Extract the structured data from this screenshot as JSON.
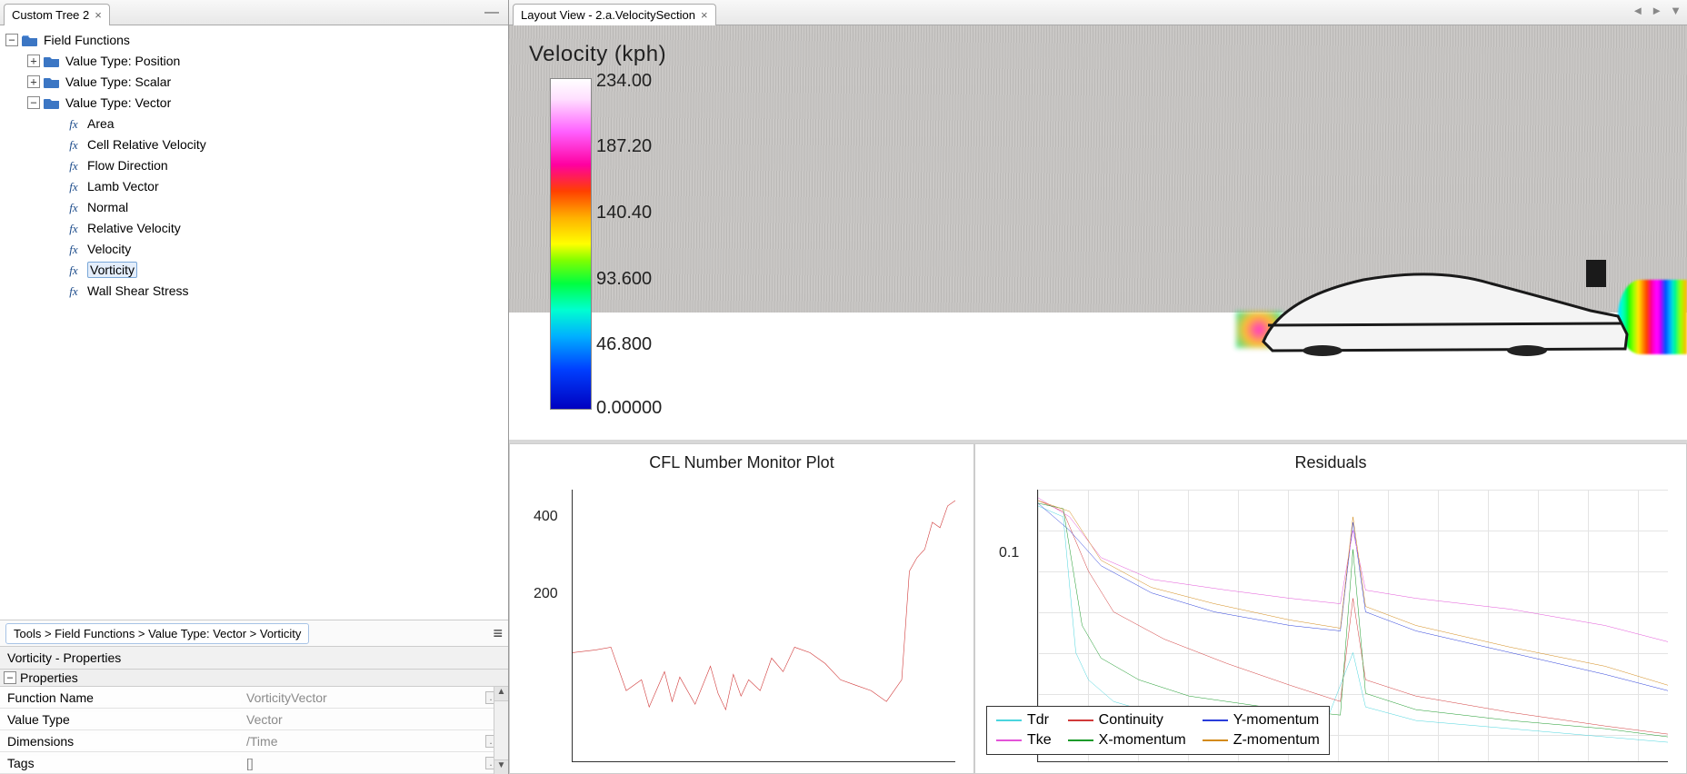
{
  "leftTab": {
    "title": "Custom Tree 2"
  },
  "rightTab": {
    "title": "Layout View - 2.a.VelocitySection"
  },
  "tree": {
    "root": "Field Functions",
    "n_position": "Value Type: Position",
    "n_scalar": "Value Type: Scalar",
    "n_vector": "Value Type: Vector",
    "leaves": {
      "area": "Area",
      "crv": "Cell Relative Velocity",
      "flow": "Flow Direction",
      "lamb": "Lamb Vector",
      "normal": "Normal",
      "relv": "Relative Velocity",
      "vel": "Velocity",
      "vort": "Vorticity",
      "wss": "Wall Shear Stress"
    }
  },
  "breadcrumb": "Tools > Field Functions > Value Type: Vector > Vorticity",
  "propsTitle": "Vorticity - Properties",
  "propsHead": "Properties",
  "props": {
    "fn_k": "Function Name",
    "fn_v": "VorticityVector",
    "vt_k": "Value Type",
    "vt_v": "Vector",
    "dim_k": "Dimensions",
    "dim_v": "/Time",
    "tag_k": "Tags",
    "tag_v": "[]"
  },
  "viz": {
    "title": "Velocity (kph)",
    "bar": {
      "v0": "234.00",
      "v1": "187.20",
      "v2": "140.40",
      "v3": "93.600",
      "v4": "46.800",
      "v5": "0.00000"
    }
  },
  "cfl": {
    "title": "CFL Number Monitor Plot",
    "y400": "400",
    "y200": "200",
    "line_color": "#d13a3a",
    "points": [
      [
        0,
        40
      ],
      [
        6,
        41
      ],
      [
        10,
        42
      ],
      [
        14,
        26
      ],
      [
        18,
        30
      ],
      [
        20,
        20
      ],
      [
        24,
        33
      ],
      [
        26,
        22
      ],
      [
        28,
        31
      ],
      [
        32,
        21
      ],
      [
        36,
        35
      ],
      [
        38,
        25
      ],
      [
        40,
        19
      ],
      [
        42,
        32
      ],
      [
        44,
        24
      ],
      [
        46,
        30
      ],
      [
        49,
        26
      ],
      [
        52,
        38
      ],
      [
        55,
        33
      ],
      [
        58,
        42
      ],
      [
        62,
        40
      ],
      [
        66,
        36
      ],
      [
        70,
        30
      ],
      [
        74,
        28
      ],
      [
        78,
        26
      ],
      [
        82,
        22
      ],
      [
        86,
        30
      ],
      [
        88,
        70
      ],
      [
        90,
        75
      ],
      [
        92,
        78
      ],
      [
        94,
        88
      ],
      [
        96,
        86
      ],
      [
        98,
        94
      ],
      [
        100,
        96
      ]
    ]
  },
  "res": {
    "title": "Residuals",
    "y01": "0.1",
    "legend": {
      "tdr": {
        "label": "Tdr",
        "color": "#4bd5de"
      },
      "cont": {
        "label": "Continuity",
        "color": "#d13a3a"
      },
      "ymom": {
        "label": "Y-momentum",
        "color": "#2a3ddb"
      },
      "tke": {
        "label": "Tke",
        "color": "#e354d8"
      },
      "xmom": {
        "label": "X-momentum",
        "color": "#1a9a2a"
      },
      "zmom": {
        "label": "Z-momentum",
        "color": "#d38a18"
      }
    },
    "series": {
      "tdr": [
        [
          0,
          94
        ],
        [
          4,
          90
        ],
        [
          6,
          40
        ],
        [
          8,
          30
        ],
        [
          12,
          22
        ],
        [
          18,
          18
        ],
        [
          30,
          14
        ],
        [
          45,
          10
        ],
        [
          50,
          40
        ],
        [
          52,
          20
        ],
        [
          60,
          15
        ],
        [
          75,
          12
        ],
        [
          90,
          9
        ],
        [
          100,
          7
        ]
      ],
      "cont": [
        [
          0,
          96
        ],
        [
          4,
          92
        ],
        [
          8,
          70
        ],
        [
          12,
          55
        ],
        [
          20,
          45
        ],
        [
          30,
          36
        ],
        [
          40,
          28
        ],
        [
          48,
          22
        ],
        [
          50,
          60
        ],
        [
          52,
          30
        ],
        [
          60,
          24
        ],
        [
          75,
          18
        ],
        [
          90,
          13
        ],
        [
          100,
          10
        ]
      ],
      "ymom": [
        [
          0,
          95
        ],
        [
          5,
          85
        ],
        [
          10,
          72
        ],
        [
          18,
          62
        ],
        [
          28,
          55
        ],
        [
          40,
          50
        ],
        [
          48,
          48
        ],
        [
          50,
          88
        ],
        [
          52,
          55
        ],
        [
          60,
          48
        ],
        [
          75,
          40
        ],
        [
          90,
          32
        ],
        [
          100,
          26
        ]
      ],
      "tke": [
        [
          0,
          97
        ],
        [
          5,
          90
        ],
        [
          10,
          75
        ],
        [
          18,
          67
        ],
        [
          30,
          63
        ],
        [
          40,
          60
        ],
        [
          48,
          58
        ],
        [
          50,
          85
        ],
        [
          52,
          63
        ],
        [
          60,
          60
        ],
        [
          75,
          56
        ],
        [
          90,
          50
        ],
        [
          100,
          44
        ]
      ],
      "xmom": [
        [
          0,
          95
        ],
        [
          4,
          93
        ],
        [
          7,
          50
        ],
        [
          10,
          38
        ],
        [
          16,
          30
        ],
        [
          24,
          24
        ],
        [
          36,
          20
        ],
        [
          48,
          17
        ],
        [
          50,
          78
        ],
        [
          52,
          25
        ],
        [
          60,
          19
        ],
        [
          75,
          15
        ],
        [
          90,
          12
        ],
        [
          100,
          9
        ]
      ],
      "zmom": [
        [
          0,
          96
        ],
        [
          5,
          92
        ],
        [
          10,
          74
        ],
        [
          18,
          64
        ],
        [
          28,
          58
        ],
        [
          40,
          52
        ],
        [
          48,
          49
        ],
        [
          50,
          90
        ],
        [
          52,
          57
        ],
        [
          60,
          50
        ],
        [
          75,
          42
        ],
        [
          90,
          35
        ],
        [
          100,
          28
        ]
      ]
    }
  }
}
